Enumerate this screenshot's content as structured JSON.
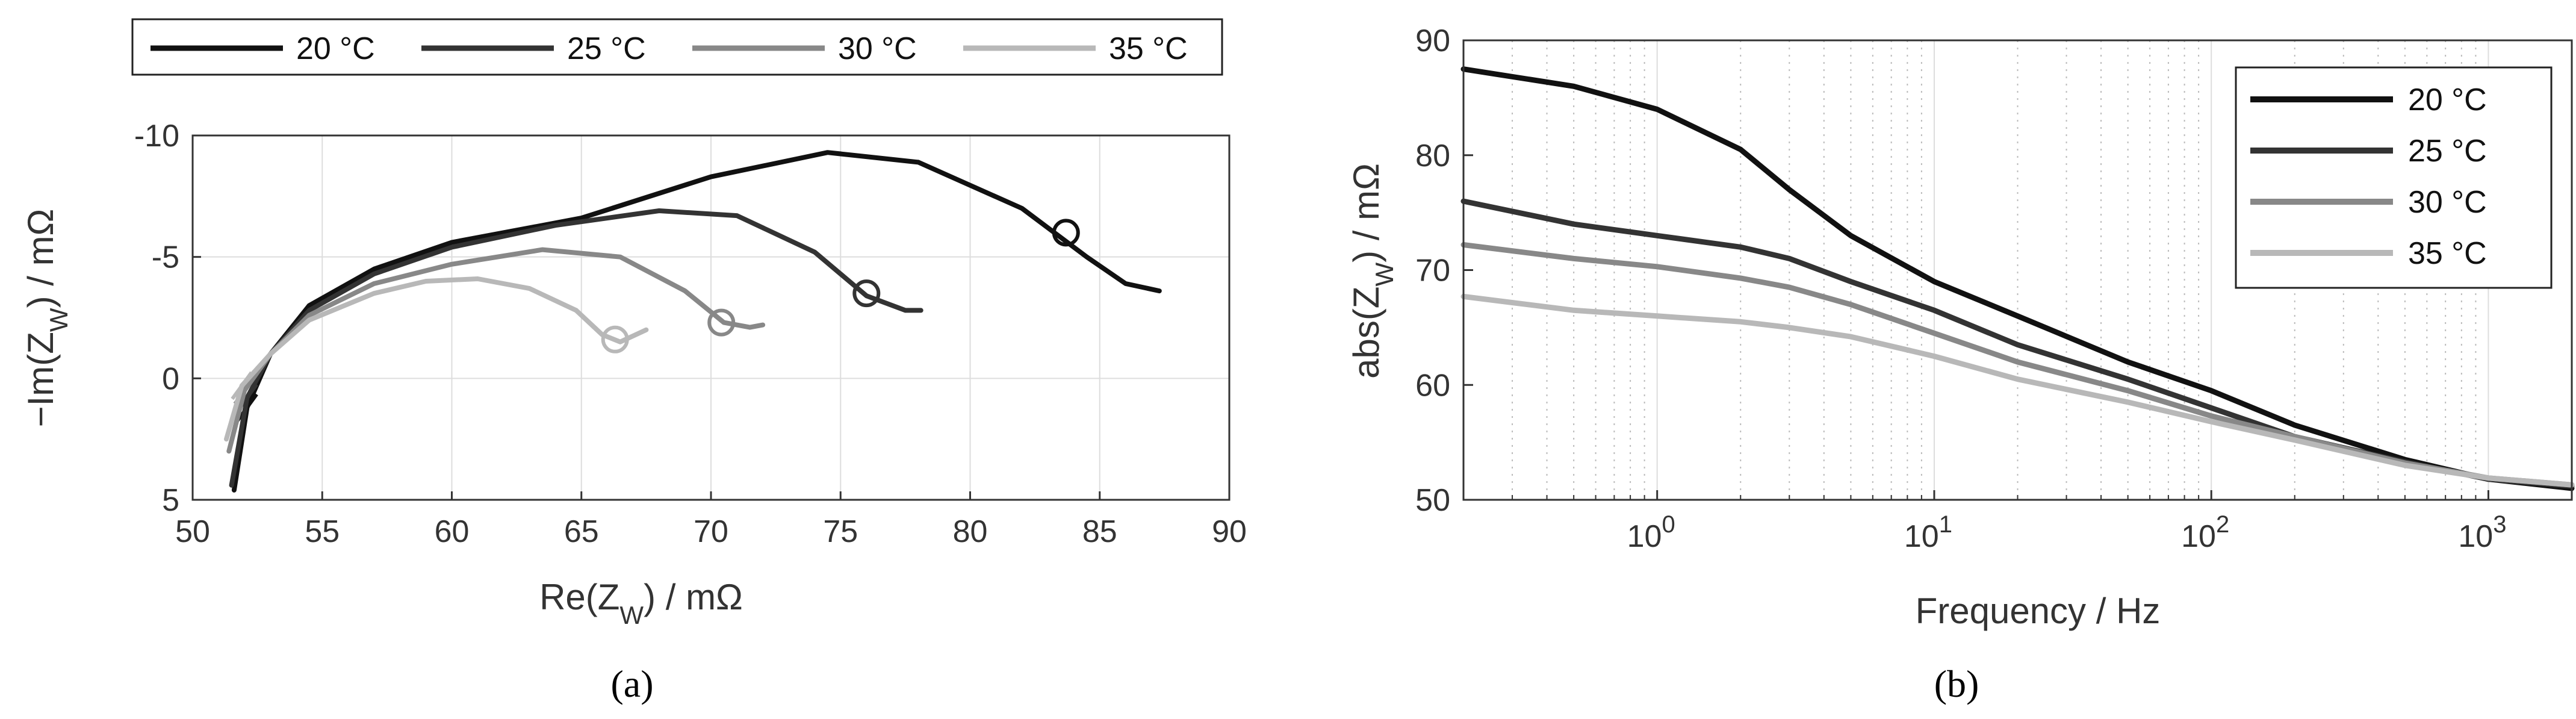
{
  "panel_labels": {
    "a": "(a)",
    "b": "(b)"
  },
  "chart_data": [
    {
      "type": "line",
      "panel": "a",
      "xlabel": "Re(Z_W) / mΩ",
      "ylabel": "−Im(Z_W) / mΩ",
      "xlim": [
        50,
        90
      ],
      "ylim": [
        5,
        -10
      ],
      "y_axis_reversed": true,
      "xticks": [
        50,
        55,
        60,
        65,
        70,
        75,
        80,
        85,
        90
      ],
      "yticks": [
        -10,
        -5,
        0,
        5
      ],
      "grid": true,
      "legend_position": "top, outside, horizontal",
      "legend": [
        "20 °C",
        "25 °C",
        "30 °C",
        "35 °C"
      ],
      "series": [
        {
          "name": "20 °C",
          "color": "#111111",
          "x": [
            51.6,
            52.1,
            53.0,
            54.5,
            57.0,
            60.0,
            65.0,
            70.0,
            74.5,
            78.0,
            82.0,
            84.5,
            86.0,
            87.3
          ],
          "y": [
            4.6,
            1.2,
            -1.0,
            -3.0,
            -4.5,
            -5.6,
            -6.6,
            -8.3,
            -9.3,
            -8.9,
            -7.0,
            -5.0,
            -3.9,
            -3.6
          ],
          "marker_circle": [
            83.7,
            -6.0
          ]
        },
        {
          "name": "25 °C",
          "color": "#333333",
          "x": [
            51.5,
            52.1,
            53.0,
            54.5,
            57.0,
            60.0,
            64.0,
            68.0,
            71.0,
            74.0,
            76.0,
            77.5,
            78.1
          ],
          "y": [
            4.4,
            0.8,
            -1.0,
            -2.8,
            -4.3,
            -5.4,
            -6.3,
            -6.9,
            -6.7,
            -5.2,
            -3.4,
            -2.8,
            -2.8
          ],
          "marker_circle": [
            76.0,
            -3.5
          ]
        },
        {
          "name": "30 °C",
          "color": "#888888",
          "x": [
            51.4,
            52.0,
            53.0,
            54.5,
            57.0,
            60.0,
            63.5,
            66.5,
            69.0,
            70.5,
            71.5,
            72.0
          ],
          "y": [
            3.0,
            0.5,
            -1.0,
            -2.6,
            -3.9,
            -4.7,
            -5.3,
            -5.0,
            -3.6,
            -2.3,
            -2.1,
            -2.2
          ],
          "marker_circle": [
            70.4,
            -2.3
          ]
        },
        {
          "name": "35 °C",
          "color": "#b8b8b8",
          "x": [
            51.3,
            51.9,
            53.0,
            54.5,
            57.0,
            59.0,
            61.0,
            63.0,
            64.8,
            65.8,
            66.5,
            67.5
          ],
          "y": [
            2.5,
            0.3,
            -1.0,
            -2.4,
            -3.5,
            -4.0,
            -4.1,
            -3.7,
            -2.8,
            -1.8,
            -1.5,
            -2.0
          ],
          "marker_circle": [
            66.3,
            -1.6
          ]
        }
      ]
    },
    {
      "type": "line",
      "panel": "b",
      "xlabel": "Frequency / Hz",
      "ylabel": "abs(Z_W) / mΩ",
      "x_scale": "log",
      "xlim": [
        0.2,
        2000
      ],
      "ylim": [
        50,
        90
      ],
      "xticks": [
        1,
        10,
        100,
        1000
      ],
      "xtick_labels": [
        [
          "10",
          "0"
        ],
        [
          "10",
          "1"
        ],
        [
          "10",
          "2"
        ],
        [
          "10",
          "3"
        ]
      ],
      "yticks": [
        50,
        60,
        70,
        80,
        90
      ],
      "grid": "minor x (dotted), major x (solid)",
      "legend_position": "top-right",
      "legend": [
        "20 °C",
        "25 °C",
        "30 °C",
        "35 °C"
      ],
      "series": [
        {
          "name": "20 °C",
          "color": "#111111",
          "x": [
            0.2,
            0.5,
            1,
            2,
            3,
            5,
            10,
            20,
            50,
            100,
            200,
            500,
            1000,
            2000
          ],
          "y": [
            87.5,
            86.0,
            84.0,
            80.5,
            77.0,
            73.0,
            69.0,
            66.0,
            62.0,
            59.5,
            56.5,
            53.5,
            51.8,
            51.0
          ]
        },
        {
          "name": "25 °C",
          "color": "#333333",
          "x": [
            0.2,
            0.5,
            1,
            2,
            3,
            5,
            10,
            20,
            50,
            100,
            200,
            500,
            1000,
            2000
          ],
          "y": [
            76.0,
            74.0,
            73.0,
            72.0,
            71.0,
            69.0,
            66.5,
            63.5,
            60.5,
            58.0,
            55.5,
            53.3,
            51.8,
            51.2
          ]
        },
        {
          "name": "30 °C",
          "color": "#888888",
          "x": [
            0.2,
            0.5,
            1,
            2,
            3,
            5,
            10,
            20,
            50,
            100,
            200,
            500,
            1000,
            2000
          ],
          "y": [
            72.2,
            71.0,
            70.3,
            69.3,
            68.5,
            67.0,
            64.5,
            62.0,
            59.5,
            57.3,
            55.5,
            53.2,
            51.9,
            51.3
          ]
        },
        {
          "name": "35 °C",
          "color": "#b8b8b8",
          "x": [
            0.2,
            0.5,
            1,
            2,
            3,
            5,
            10,
            20,
            50,
            100,
            200,
            500,
            1000,
            2000
          ],
          "y": [
            67.7,
            66.5,
            66.0,
            65.5,
            65.0,
            64.2,
            62.5,
            60.5,
            58.5,
            56.8,
            55.2,
            53.0,
            51.9,
            51.3
          ]
        }
      ]
    }
  ]
}
